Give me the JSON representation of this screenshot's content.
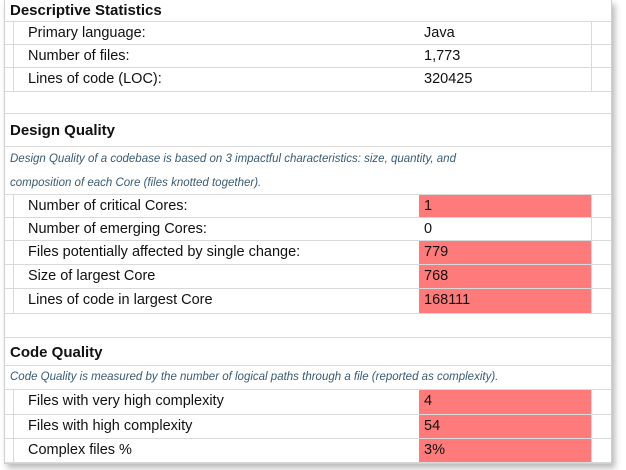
{
  "descriptive": {
    "title": "Descriptive Statistics",
    "rows": [
      {
        "label": "Primary language:",
        "value": "Java"
      },
      {
        "label": "Number of files:",
        "value": "1,773"
      },
      {
        "label": "Lines of code (LOC):",
        "value": "320425"
      }
    ]
  },
  "design": {
    "title": "Design Quality",
    "desc_line1": "Design Quality of a codebase is based on 3 impactful characteristics: size, quantity, and",
    "desc_line2": "composition of each Core (files knotted together).",
    "rows": [
      {
        "label": "Number of critical Cores:",
        "value": "1"
      },
      {
        "label": "Number of emerging Cores:",
        "value": "0"
      },
      {
        "label": "Files potentially affected by single change:",
        "value": "779"
      },
      {
        "label": "Size of largest Core",
        "value": "768"
      },
      {
        "label": "Lines of code in largest Core",
        "value": "168111"
      }
    ]
  },
  "code": {
    "title": "Code Quality",
    "desc": "Code Quality is measured by the number of logical paths through a file (reported as complexity).",
    "rows": [
      {
        "label": "Files with very high complexity",
        "value": "4"
      },
      {
        "label": "Files with high complexity",
        "value": "54"
      },
      {
        "label": "Complex files %",
        "value": "3%"
      }
    ]
  },
  "colors": {
    "highlight": "#ff7b7b",
    "description_text": "#3a5a73"
  }
}
